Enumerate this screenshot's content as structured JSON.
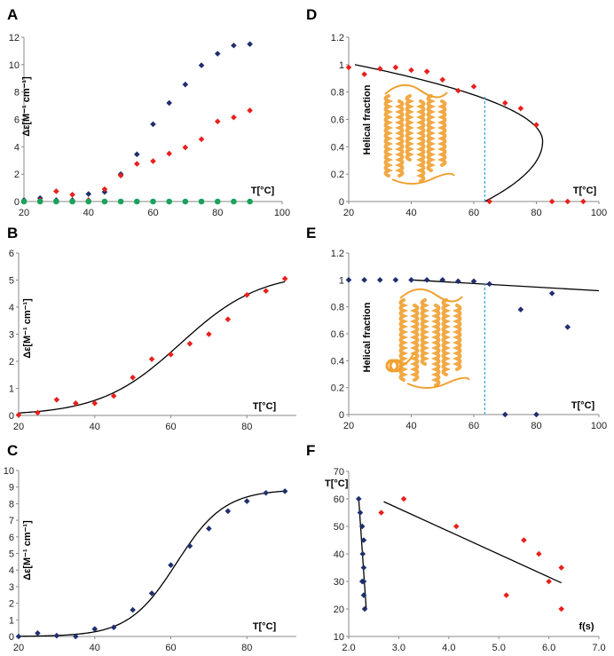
{
  "colors": {
    "navy": "#1f2f6e",
    "red": "#e8201c",
    "green": "#1aa25c",
    "dash": "#2aa6d6",
    "axis": "#8a8a8a",
    "protein": "#f0a030"
  },
  "chart_data": [
    {
      "id": "A",
      "type": "scatter",
      "panel_label": "A",
      "ylabel": "Δε[M⁻¹ cm⁻¹]",
      "xlabel": "T[°C]",
      "xlim": [
        20,
        100
      ],
      "ylim": [
        0,
        12
      ],
      "xticks": [
        "20",
        "40",
        "60",
        "80",
        "100"
      ],
      "yticks": [
        "0",
        "2",
        "4",
        "6",
        "8",
        "10",
        "12"
      ],
      "series": [
        {
          "name": "navy",
          "color": "navy",
          "marker": "diamond",
          "x": [
            20,
            25,
            30,
            35,
            40,
            45,
            50,
            55,
            60,
            65,
            70,
            75,
            80,
            85,
            90
          ],
          "y": [
            0.1,
            0.25,
            0.1,
            0.1,
            0.55,
            0.7,
            2.0,
            3.45,
            5.65,
            7.2,
            8.55,
            9.95,
            10.8,
            11.4,
            11.5
          ]
        },
        {
          "name": "red",
          "color": "red",
          "marker": "diamond",
          "x": [
            25,
            30,
            35,
            40,
            45,
            50,
            55,
            60,
            65,
            70,
            75,
            80,
            85,
            90
          ],
          "y": [
            0.1,
            0.75,
            0.5,
            0.1,
            0.9,
            1.9,
            2.75,
            2.95,
            3.5,
            3.95,
            4.55,
            5.85,
            6.15,
            6.65
          ]
        },
        {
          "name": "green",
          "color": "green",
          "marker": "circle",
          "x": [
            20,
            25,
            30,
            35,
            40,
            45,
            50,
            55,
            60,
            65,
            70,
            75,
            80,
            85,
            90
          ],
          "y": [
            0,
            0,
            0,
            0,
            0,
            0,
            0,
            0,
            0,
            0,
            0,
            0,
            0,
            0,
            0
          ]
        }
      ]
    },
    {
      "id": "B",
      "type": "scatter",
      "panel_label": "B",
      "ylabel": "Δε[M⁻¹ cm⁻¹]",
      "xlabel": "T[°C]",
      "xlim": [
        20,
        93
      ],
      "ylim": [
        0,
        6
      ],
      "xticks": [
        "20",
        "40",
        "60",
        "80"
      ],
      "yticks": [
        "0",
        "1",
        "2",
        "3",
        "4",
        "5",
        "6"
      ],
      "series": [
        {
          "name": "red",
          "color": "red",
          "marker": "diamond",
          "x": [
            20,
            25,
            30,
            35,
            40,
            45,
            50,
            55,
            60,
            65,
            70,
            75,
            80,
            85,
            90
          ],
          "y": [
            0.02,
            0.1,
            0.58,
            0.45,
            0.45,
            0.72,
            1.4,
            2.08,
            2.25,
            2.65,
            3.0,
            3.55,
            4.45,
            4.6,
            5.05
          ]
        }
      ],
      "fit": {
        "type": "sigmoid",
        "bottom": 0,
        "top": 5.3,
        "x0": 62.5,
        "k": 10.5,
        "x": [
          20,
          90
        ]
      }
    },
    {
      "id": "C",
      "type": "scatter",
      "panel_label": "C",
      "ylabel": "Δε[M⁻¹ cm⁻¹]",
      "xlabel": "T[°C]",
      "xlim": [
        20,
        93
      ],
      "ylim": [
        0,
        10
      ],
      "xticks": [
        "20",
        "40",
        "60",
        "80"
      ],
      "yticks": [
        "0",
        "1",
        "2",
        "3",
        "4",
        "5",
        "6",
        "7",
        "8",
        "9",
        "10"
      ],
      "series": [
        {
          "name": "navy",
          "color": "navy",
          "marker": "diamond",
          "x": [
            20,
            25,
            30,
            35,
            40,
            45,
            50,
            55,
            60,
            65,
            70,
            75,
            80,
            85,
            90
          ],
          "y": [
            0,
            0.2,
            0.05,
            0,
            0.45,
            0.55,
            1.6,
            2.6,
            4.3,
            5.45,
            6.5,
            7.55,
            8.15,
            8.65,
            8.75
          ]
        }
      ],
      "fit": {
        "type": "sigmoid",
        "bottom": 0,
        "top": 8.85,
        "x0": 61.5,
        "k": 6.3,
        "x": [
          20,
          90
        ]
      }
    },
    {
      "id": "D",
      "type": "scatter",
      "panel_label": "D",
      "ylabel": "Helical fraction",
      "xlabel": "T[°C]",
      "xlim": [
        20,
        100
      ],
      "ylim": [
        0,
        1.2
      ],
      "xticks": [
        "20",
        "40",
        "60",
        "80",
        "100"
      ],
      "yticks": [
        "0",
        "0.2",
        "0.4",
        "0.6",
        "0.8",
        "1",
        "1.2"
      ],
      "series": [
        {
          "name": "red",
          "color": "red",
          "marker": "diamond",
          "x": [
            20,
            25,
            30,
            35,
            40,
            45,
            50,
            55,
            60,
            65,
            70,
            75,
            80,
            85,
            90,
            95
          ],
          "y": [
            0.98,
            0.93,
            0.97,
            0.98,
            0.96,
            0.95,
            0.89,
            0.81,
            0.84,
            0.0,
            0.72,
            0.68,
            0.56,
            0.0,
            0.0,
            0.0
          ]
        }
      ],
      "fit": {
        "type": "parabolic",
        "top": 1.0,
        "bottom": 0.0,
        "vertex_x": 82,
        "vertex_y": 0.44,
        "start_x": 22,
        "end_x": 63.5
      },
      "marker_line": {
        "x": 63.5,
        "y": [
          0,
          0.78
        ]
      }
    },
    {
      "id": "E",
      "type": "scatter",
      "panel_label": "E",
      "ylabel": "Helical fraction",
      "xlabel": "T[°C]",
      "xlim": [
        20,
        100
      ],
      "ylim": [
        0,
        1.2
      ],
      "xticks": [
        "20",
        "40",
        "60",
        "80",
        "100"
      ],
      "yticks": [
        "0",
        "0.2",
        "0.4",
        "0.6",
        "0.8",
        "1",
        "1.2"
      ],
      "series": [
        {
          "name": "navy",
          "color": "navy",
          "marker": "diamond",
          "x": [
            20,
            25,
            30,
            35,
            40,
            45,
            50,
            55,
            60,
            65,
            70,
            75,
            80,
            85,
            90
          ],
          "y": [
            1.0,
            1.0,
            1.0,
            1.0,
            1.0,
            1.0,
            1.0,
            0.99,
            0.99,
            0.97,
            0.0,
            0.78,
            0.0,
            0.9,
            0.65
          ]
        }
      ],
      "fit": {
        "type": "line",
        "x": [
          40,
          100
        ],
        "y": [
          1.0,
          0.92
        ]
      },
      "marker_line": {
        "x": 63.5,
        "y": [
          0,
          0.97
        ]
      }
    },
    {
      "id": "F",
      "type": "scatter",
      "panel_label": "F",
      "ylabel": "T[°C]",
      "xlabel": "f(s)",
      "xlim": [
        2.0,
        7.0
      ],
      "ylim": [
        10,
        70
      ],
      "xticks": [
        "2.0",
        "3.0",
        "4.0",
        "5.0",
        "6.0",
        "7.0"
      ],
      "yticks": [
        "10",
        "20",
        "30",
        "40",
        "50",
        "60",
        "70"
      ],
      "series": [
        {
          "name": "navy",
          "color": "navy",
          "marker": "diamond",
          "x": [
            2.2,
            2.23,
            2.27,
            2.3,
            2.28,
            2.3,
            2.27,
            2.3,
            2.3,
            2.32
          ],
          "y": [
            60,
            55,
            50,
            45,
            40,
            35,
            30,
            30,
            25,
            20
          ]
        },
        {
          "name": "red",
          "color": "red",
          "marker": "diamond",
          "x": [
            2.65,
            3.1,
            4.15,
            5.15,
            5.5,
            5.8,
            6.0,
            6.25,
            6.25
          ],
          "y": [
            55,
            60,
            50,
            25,
            45,
            40,
            30,
            35,
            20
          ]
        }
      ],
      "fits": [
        {
          "type": "line",
          "x": [
            2.2,
            2.35
          ],
          "y": [
            60,
            20
          ]
        },
        {
          "type": "line",
          "x": [
            2.7,
            6.25
          ],
          "y": [
            59,
            29.5
          ]
        }
      ]
    }
  ]
}
